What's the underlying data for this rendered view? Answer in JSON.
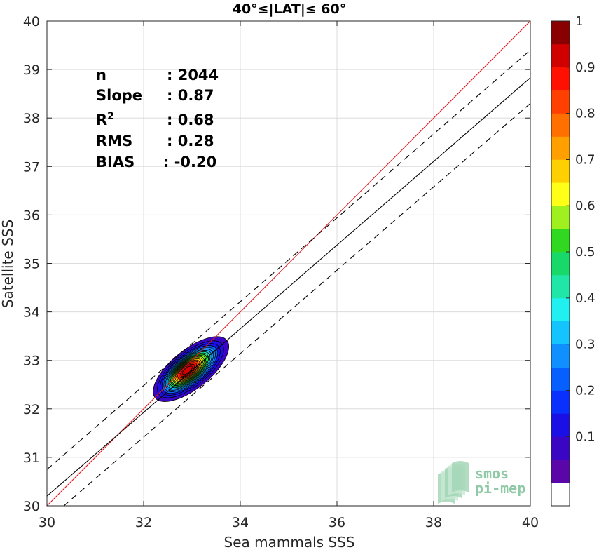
{
  "chart_data": {
    "type": "scatter",
    "title": "40°≤|LAT|≤ 60°",
    "xlabel": "Sea mammals SSS",
    "ylabel": "Satellite SSS",
    "xlim": [
      30,
      40
    ],
    "ylim": [
      30,
      40
    ],
    "xticks": [
      "30",
      "32",
      "34",
      "36",
      "38",
      "40"
    ],
    "yticks": [
      "30",
      "31",
      "32",
      "33",
      "34",
      "35",
      "36",
      "37",
      "38",
      "39",
      "40"
    ],
    "grid": true,
    "stats": [
      {
        "name": "n",
        "value": ": 2044"
      },
      {
        "name": "Slope",
        "value": ": 0.87"
      },
      {
        "name": "R",
        "sup": "2",
        "value": ": 0.68"
      },
      {
        "name": "RMS",
        "value": ": 0.28"
      },
      {
        "name": "BIAS",
        "value": ": -0.20"
      }
    ],
    "lines": {
      "identity": {
        "color": "#e8141a",
        "x": [
          30,
          40
        ],
        "y": [
          30,
          40
        ]
      },
      "fit": {
        "color": "#000000",
        "x": [
          30,
          40
        ],
        "y": [
          30.2,
          38.83
        ]
      },
      "fit_upper": {
        "color": "#000000",
        "dash": true,
        "x": [
          30,
          40
        ],
        "y": [
          30.75,
          39.4
        ]
      },
      "fit_lower": {
        "color": "#000000",
        "dash": true,
        "x": [
          30.35,
          40
        ],
        "y": [
          30,
          38.3
        ]
      }
    },
    "density": {
      "center": [
        32.98,
        32.82
      ],
      "direction": [
        0.78,
        0.626
      ],
      "outer_semi_axes": [
        0.95,
        0.4
      ],
      "min_density": 0.05,
      "max_density": 1.0,
      "levels": [
        0.05,
        0.1,
        0.15,
        0.2,
        0.25,
        0.3,
        0.35,
        0.4,
        0.45,
        0.5,
        0.55,
        0.6,
        0.65,
        0.7,
        0.75,
        0.8,
        0.85,
        0.9,
        0.95
      ]
    },
    "colorbar": {
      "ticks": [
        "0.1",
        "0.2",
        "0.3",
        "0.4",
        "0.5",
        "0.6",
        "0.7",
        "0.8",
        "0.9",
        "1"
      ],
      "colors": [
        "#ffffff",
        "#5a06a8",
        "#3a06c4",
        "#1a10e6",
        "#0a30ff",
        "#0660ff",
        "#1090ff",
        "#14c4ff",
        "#20f0f0",
        "#20e6a8",
        "#18d86a",
        "#30d820",
        "#a0f020",
        "#ffff18",
        "#ffd000",
        "#ffa000",
        "#ff7000",
        "#ff4000",
        "#ff1000",
        "#d00000",
        "#8a0000"
      ]
    },
    "logo": {
      "line1": "smos",
      "line2": "pi-mep"
    }
  }
}
